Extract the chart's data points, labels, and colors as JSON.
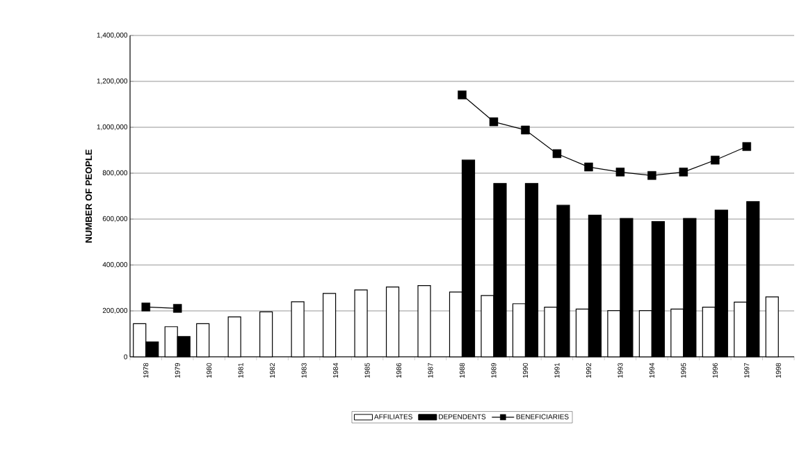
{
  "chart_data": {
    "type": "bar",
    "ylabel": "NUMBER OF PEOPLE",
    "categories": [
      "1978",
      "1979",
      "1980",
      "1981",
      "1982",
      "1983",
      "1984",
      "1985",
      "1986",
      "1987",
      "1988",
      "1989",
      "1990",
      "1991",
      "1992",
      "1993",
      "1994",
      "1995",
      "1996",
      "1997",
      "1998"
    ],
    "series": [
      {
        "name": "AFFILIATES",
        "color": "#ffffff",
        "values": [
          144000,
          131000,
          144000,
          174000,
          196000,
          240000,
          276000,
          291000,
          304000,
          310000,
          282000,
          267000,
          231000,
          216000,
          208000,
          201000,
          201000,
          208000,
          216000,
          238000,
          261000
        ]
      },
      {
        "name": "DEPENDENTS",
        "color": "#000000",
        "values": [
          65000,
          88000,
          null,
          null,
          null,
          null,
          null,
          null,
          null,
          null,
          857000,
          755000,
          755000,
          660000,
          617000,
          603000,
          589000,
          603000,
          639000,
          676000,
          null
        ]
      },
      {
        "name": "BENEFICIARIES",
        "type": "line",
        "color": "#000000",
        "marker": "square",
        "values": [
          217000,
          211000,
          null,
          null,
          null,
          null,
          null,
          null,
          null,
          null,
          1141000,
          1024000,
          988000,
          885000,
          827000,
          805000,
          790000,
          805000,
          857000,
          916000,
          null
        ]
      }
    ],
    "ylim": [
      0,
      1400000
    ],
    "yticks": [
      {
        "value": 0,
        "label": "0"
      },
      {
        "value": 200000,
        "label": "200,000"
      },
      {
        "value": 400000,
        "label": "400,000"
      },
      {
        "value": 600000,
        "label": "600,000"
      },
      {
        "value": 800000,
        "label": "800,000"
      },
      {
        "value": 1000000,
        "label": "1,000,000"
      },
      {
        "value": 1200000,
        "label": "1,200,000"
      },
      {
        "value": 1400000,
        "label": "1,400,000"
      }
    ],
    "grid": "y",
    "legend": "bottom"
  }
}
